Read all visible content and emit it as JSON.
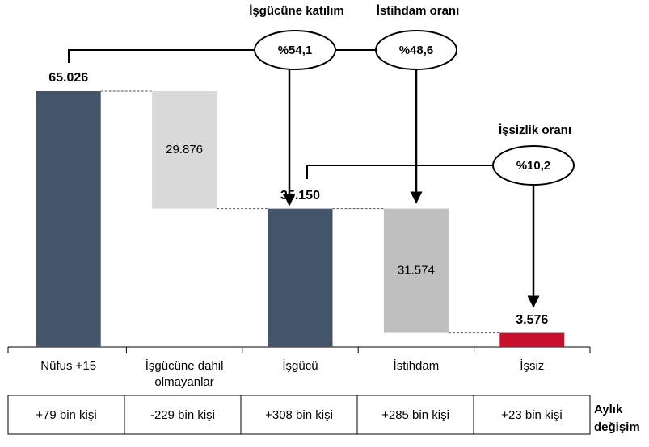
{
  "chart_data": {
    "type": "waterfall",
    "categories": [
      "Nüfus +15",
      "İşgücüne dahil olmayanlar",
      "İşgücü",
      "İstihdam",
      "İşsiz"
    ],
    "values": [
      65026,
      29876,
      35150,
      31574,
      3576
    ],
    "value_labels": [
      "65.026",
      "29.876",
      "35.150",
      "31.574",
      "3.576"
    ],
    "measures": [
      "absolute",
      "relative",
      "absolute",
      "relative",
      "absolute"
    ],
    "colors": [
      "#44546a",
      "#d9d9d9",
      "#44546a",
      "#bfbfbf",
      "#c8102e"
    ],
    "annotations": [
      {
        "title": "İşgücüne katılım",
        "text": "%54,1"
      },
      {
        "title": "İstihdam oranı",
        "text": "%48,6"
      },
      {
        "title": "İşsizlik oranı",
        "text": "%10,2"
      }
    ],
    "monthly_change": {
      "label": "Aylık değişim",
      "values": [
        "+79 bin kişi",
        "-229 bin kişi",
        "+308 bin kişi",
        "+285 bin kişi",
        "+23 bin kişi"
      ]
    }
  }
}
